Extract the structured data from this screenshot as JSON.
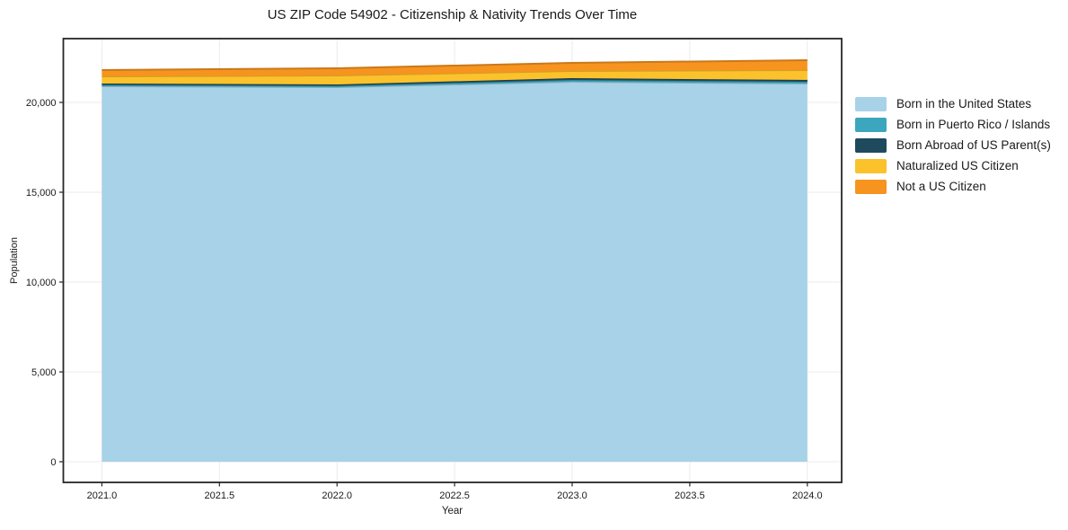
{
  "chart_data": {
    "type": "area",
    "stacked": true,
    "title": "US ZIP Code 54902 - Citizenship & Nativity Trends Over Time",
    "xlabel": "Year",
    "ylabel": "Population",
    "x": [
      2021,
      2022,
      2023,
      2024
    ],
    "series": [
      {
        "name": "Born in the United States",
        "color": "#a7d2e7",
        "values": [
          20900,
          20850,
          21150,
          21050
        ]
      },
      {
        "name": "Born in Puerto Rico / Islands",
        "color": "#3ba6bd",
        "values": [
          75,
          75,
          100,
          100
        ]
      },
      {
        "name": "Born Abroad of US Parent(s)",
        "color": "#1f4a5e",
        "values": [
          75,
          75,
          100,
          100
        ]
      },
      {
        "name": "Naturalized US Citizen",
        "color": "#fcc22c",
        "values": [
          400,
          500,
          400,
          550
        ]
      },
      {
        "name": "Not a US Citizen",
        "color": "#f6941f",
        "values": [
          350,
          400,
          450,
          550
        ]
      }
    ],
    "xlim": [
      2020.836,
      2024.146
    ],
    "ylim": [
      -1150,
      23550
    ],
    "xticks": {
      "values": [
        2021.0,
        2021.5,
        2022.0,
        2022.5,
        2023.0,
        2023.5,
        2024.0
      ],
      "labels": [
        "2021.0",
        "2021.5",
        "2022.0",
        "2022.5",
        "2023.0",
        "2023.5",
        "2024.0"
      ]
    },
    "yticks": {
      "values": [
        0,
        5000,
        10000,
        15000,
        20000
      ],
      "labels": [
        "0",
        "5,000",
        "10,000",
        "15,000",
        "20,000"
      ]
    },
    "grid": true,
    "grid_color": "#ebebeb",
    "frame_color": "#262626",
    "text_color": "#1a1a1a",
    "legend_position": "right-outside"
  }
}
